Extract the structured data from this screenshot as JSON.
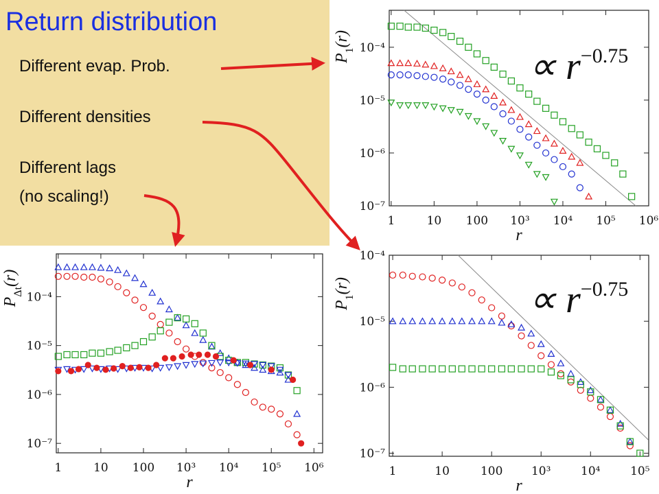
{
  "slide": {
    "title": "Return distribution",
    "notes": [
      "Different evap. Prob.",
      "Different densities",
      "Different lags",
      "(no scaling!)"
    ]
  },
  "chart_data": [
    {
      "type": "scatter",
      "log_x": true,
      "log_y": true,
      "xlabel": "r",
      "ylabel": [
        "P",
        "1",
        "(r)"
      ],
      "annotation": {
        "text": "∝ r",
        "exponent": "−0.75"
      },
      "xlim": [
        0.9,
        1000000
      ],
      "ylim": [
        1e-07,
        0.0005
      ],
      "xticks": [
        1,
        10,
        100,
        {
          "value": 1000,
          "label": "10³"
        },
        {
          "value": 10000,
          "label": "10⁴"
        },
        {
          "value": 100000,
          "label": "10⁵"
        },
        {
          "value": 1000000,
          "label": "10⁶"
        }
      ],
      "yticks": [
        {
          "value": 1e-07,
          "label": "10⁻⁷"
        },
        {
          "value": 1e-06,
          "label": "10⁻⁶"
        },
        {
          "value": 1e-05,
          "label": "10⁻⁵"
        },
        {
          "value": 0.0001,
          "label": "10⁻⁴"
        }
      ],
      "series": [
        {
          "marker": "line",
          "color": "#888888",
          "x": [
            2,
            500000
          ],
          "values": [
            0.0005,
            1e-07
          ]
        },
        {
          "marker": "square",
          "color": "#22a022",
          "x": [
            1,
            1.6,
            2.5,
            4,
            6.3,
            10,
            16,
            25,
            40,
            63,
            100,
            160,
            250,
            400,
            630,
            1000,
            1600,
            2500,
            4000,
            6300,
            10000,
            16000,
            25000,
            40000,
            63000,
            100000,
            160000,
            250000,
            400000
          ],
          "values": [
            0.00025,
            0.00025,
            0.00024,
            0.00024,
            0.00023,
            0.00021,
            0.00019,
            0.00016,
            0.00013,
            0.0001,
            7.5e-05,
            5.6e-05,
            4.2e-05,
            3.1e-05,
            2.3e-05,
            1.7e-05,
            1.3e-05,
            9.5e-06,
            7e-06,
            5.2e-06,
            3.9e-06,
            2.9e-06,
            2.2e-06,
            1.6e-06,
            1.2e-06,
            9e-07,
            6.5e-07,
            4e-07,
            1.5e-07
          ]
        },
        {
          "marker": "triangle-up",
          "color": "#e02020",
          "x": [
            1,
            1.6,
            2.5,
            4,
            6.3,
            10,
            16,
            25,
            40,
            63,
            100,
            160,
            250,
            400,
            630,
            1000,
            1600,
            2500,
            4000,
            6300,
            10000,
            16000,
            25000,
            40000
          ],
          "values": [
            5e-05,
            5e-05,
            5e-05,
            4.9e-05,
            4.7e-05,
            4.4e-05,
            4e-05,
            3.5e-05,
            3e-05,
            2.5e-05,
            2e-05,
            1.6e-05,
            1.2e-05,
            9e-06,
            6.5e-06,
            4.8e-06,
            3.5e-06,
            2.6e-06,
            1.9e-06,
            1.5e-06,
            1.1e-06,
            8.5e-07,
            6.5e-07,
            1.5e-07
          ]
        },
        {
          "marker": "circle",
          "color": "#2030d0",
          "x": [
            1,
            1.6,
            2.5,
            4,
            6.3,
            10,
            16,
            25,
            40,
            63,
            100,
            160,
            250,
            400,
            630,
            1000,
            1600,
            2500,
            4000,
            6300,
            10000,
            16000,
            25000
          ],
          "values": [
            3e-05,
            3e-05,
            3e-05,
            2.9e-05,
            2.8e-05,
            2.7e-05,
            2.5e-05,
            2.2e-05,
            1.9e-05,
            1.6e-05,
            1.3e-05,
            1e-05,
            7.5e-06,
            5.5e-06,
            4e-06,
            2.8e-06,
            2e-06,
            1.4e-06,
            1e-06,
            7.5e-07,
            5.5e-07,
            4e-07,
            2.2e-07
          ]
        },
        {
          "marker": "triangle-down",
          "color": "#22a022",
          "x": [
            1,
            1.6,
            2.5,
            4,
            6.3,
            10,
            16,
            25,
            40,
            63,
            100,
            160,
            250,
            400,
            630,
            1000,
            1600,
            2500,
            4000,
            6300
          ],
          "values": [
            9e-06,
            8e-06,
            8e-06,
            8e-06,
            8e-06,
            7.5e-06,
            7e-06,
            6.5e-06,
            6e-06,
            5e-06,
            4e-06,
            3.2e-06,
            2.4e-06,
            1.7e-06,
            1.2e-06,
            9e-07,
            6e-07,
            4e-07,
            3.5e-07,
            1.2e-07
          ]
        }
      ]
    },
    {
      "type": "scatter",
      "log_x": true,
      "log_y": true,
      "xlabel": "r",
      "ylabel": [
        "P",
        "1",
        "(r)"
      ],
      "annotation": {
        "text": "∝ r",
        "exponent": "−0.75"
      },
      "xlim": [
        0.85,
        150000
      ],
      "ylim": [
        9e-08,
        0.0001
      ],
      "xticks": [
        1,
        10,
        100,
        {
          "value": 1000,
          "label": "10³"
        },
        {
          "value": 10000,
          "label": "10⁴"
        },
        {
          "value": 100000,
          "label": "10⁵"
        }
      ],
      "yticks": [
        {
          "value": 1e-07,
          "label": "10⁻⁷"
        },
        {
          "value": 1e-06,
          "label": "10⁻⁶"
        },
        {
          "value": 1e-05,
          "label": "10⁻⁵"
        },
        {
          "value": 0.0001,
          "label": "10⁻⁴"
        }
      ],
      "series": [
        {
          "marker": "line",
          "color": "#888888",
          "x": [
            21,
            147000
          ],
          "values": [
            0.0001,
            1.6e-07
          ]
        },
        {
          "marker": "circle",
          "color": "#e02020",
          "x": [
            1,
            1.6,
            2.5,
            4,
            6.3,
            10,
            16,
            25,
            40,
            63,
            100,
            160,
            250,
            400,
            630,
            1000,
            1600,
            2500,
            4000,
            6300,
            10000,
            16000,
            25000,
            40000,
            63000
          ],
          "values": [
            5e-05,
            5e-05,
            4.8e-05,
            4.7e-05,
            4.5e-05,
            4.2e-05,
            3.8e-05,
            3.3e-05,
            2.7e-05,
            2.1e-05,
            1.6e-05,
            1.2e-05,
            8.5e-06,
            6e-06,
            4.3e-06,
            3e-06,
            2.2e-06,
            1.6e-06,
            1.2e-06,
            9e-07,
            6.8e-07,
            5e-07,
            3.6e-07,
            2.4e-07,
            1.3e-07
          ]
        },
        {
          "marker": "triangle-up",
          "color": "#2030d0",
          "x": [
            1,
            1.6,
            2.5,
            4,
            6.3,
            10,
            16,
            25,
            40,
            63,
            100,
            160,
            250,
            400,
            630,
            1000,
            1600,
            2500,
            4000,
            6300,
            10000,
            16000,
            25000,
            40000,
            63000
          ],
          "values": [
            1e-05,
            1e-05,
            1e-05,
            1e-05,
            1e-05,
            1e-05,
            1e-05,
            1e-05,
            1e-05,
            1e-05,
            1e-05,
            9.5e-06,
            9e-06,
            8e-06,
            6.5e-06,
            4.5e-06,
            3.2e-06,
            2.3e-06,
            1.6e-06,
            1.2e-06,
            9e-07,
            6.5e-07,
            4.5e-07,
            2.8e-07,
            1.5e-07
          ]
        },
        {
          "marker": "square",
          "color": "#22a022",
          "x": [
            1,
            1.6,
            2.5,
            4,
            6.3,
            10,
            16,
            25,
            40,
            63,
            100,
            160,
            250,
            400,
            630,
            1000,
            1600,
            2500,
            4000,
            6300,
            10000,
            16000,
            25000,
            40000,
            63000,
            100000
          ],
          "values": [
            2e-06,
            1.9e-06,
            1.9e-06,
            1.9e-06,
            1.9e-06,
            1.9e-06,
            1.9e-06,
            1.9e-06,
            1.9e-06,
            1.9e-06,
            1.9e-06,
            1.9e-06,
            1.9e-06,
            1.9e-06,
            1.9e-06,
            1.9e-06,
            1.7e-06,
            1.5e-06,
            1.3e-06,
            1.1e-06,
            8.5e-07,
            6.5e-07,
            4.5e-07,
            2.6e-07,
            1.5e-07,
            1e-07
          ]
        }
      ]
    },
    {
      "type": "scatter",
      "log_x": true,
      "log_y": true,
      "xlabel": "r",
      "ylabel": [
        "P",
        "Δt",
        "(r)"
      ],
      "xlim": [
        0.9,
        1600000
      ],
      "ylim": [
        6.4e-08,
        0.00075
      ],
      "xticks": [
        1,
        10,
        100,
        {
          "value": 1000,
          "label": "10³"
        },
        {
          "value": 10000,
          "label": "10⁴"
        },
        {
          "value": 100000,
          "label": "10⁵"
        },
        {
          "value": 1000000,
          "label": "10⁶"
        }
      ],
      "yticks": [
        {
          "value": 1e-07,
          "label": "10⁻⁷"
        },
        {
          "value": 1e-06,
          "label": "10⁻⁶"
        },
        {
          "value": 1e-05,
          "label": "10⁻⁵"
        },
        {
          "value": 0.0001,
          "label": "10⁻⁴"
        }
      ],
      "series": [
        {
          "marker": "triangle-up",
          "color": "#2030d0",
          "x": [
            1,
            1.6,
            2.5,
            4,
            6.3,
            10,
            16,
            25,
            40,
            63,
            100,
            160,
            250,
            400,
            630,
            1000,
            1600,
            2500,
            4000,
            6300,
            10000,
            16000,
            25000,
            40000,
            63000,
            100000,
            160000,
            250000,
            400000
          ],
          "values": [
            0.0004,
            0.0004,
            0.0004,
            0.0004,
            0.0004,
            0.00039,
            0.00038,
            0.00035,
            0.0003,
            0.00024,
            0.00018,
            0.00012,
            8e-05,
            5.5e-05,
            3.7e-05,
            2.6e-05,
            1.8e-05,
            1.3e-05,
            9.5e-06,
            7e-06,
            5.5e-06,
            4.5e-06,
            4e-06,
            3.5e-06,
            3.2e-06,
            3e-06,
            2.8e-06,
            2e-06,
            4e-07
          ]
        },
        {
          "marker": "circle",
          "color": "#e02020",
          "x": [
            1,
            1.6,
            2.5,
            4,
            6.3,
            10,
            16,
            25,
            40,
            63,
            100,
            160,
            250,
            400,
            630,
            1000,
            1600,
            2500,
            4000,
            6300,
            10000,
            16000,
            25000,
            40000,
            63000,
            100000,
            160000,
            250000,
            400000
          ],
          "values": [
            0.00026,
            0.00026,
            0.00026,
            0.00025,
            0.00025,
            0.00023,
            0.0002,
            0.00016,
            0.00012,
            8.5e-05,
            6e-05,
            4e-05,
            2.7e-05,
            1.8e-05,
            1.2e-05,
            8.5e-06,
            6e-06,
            4.5e-06,
            3.5e-06,
            2.8e-06,
            2.2e-06,
            1.6e-06,
            1.1e-06,
            7e-07,
            5.5e-07,
            5e-07,
            4e-07,
            2.5e-07,
            1.5e-07
          ]
        },
        {
          "marker": "square",
          "color": "#22a022",
          "x": [
            1,
            1.6,
            2.5,
            4,
            6.3,
            10,
            16,
            25,
            40,
            63,
            100,
            160,
            250,
            400,
            630,
            1000,
            1600,
            2500,
            4000,
            6300,
            10000,
            16000,
            25000,
            40000,
            63000,
            100000,
            160000,
            250000,
            400000
          ],
          "values": [
            6e-06,
            6.5e-06,
            6.5e-06,
            6.5e-06,
            7e-06,
            7e-06,
            7.5e-06,
            8e-06,
            9e-06,
            1e-05,
            1.2e-05,
            1.5e-05,
            2e-05,
            3e-05,
            3.7e-05,
            3.5e-05,
            2.8e-05,
            1.8e-05,
            1e-05,
            6e-06,
            5e-06,
            4.5e-06,
            4.5e-06,
            4.2e-06,
            4e-06,
            3.8e-06,
            3.5e-06,
            2.5e-06,
            1.2e-06
          ]
        },
        {
          "marker": "triangle-down",
          "color": "#2030d0",
          "x": [
            1,
            1.6,
            2.5,
            4,
            6.3,
            10,
            16,
            25,
            40,
            63,
            100,
            160,
            250,
            400,
            630,
            1000,
            1600,
            2500,
            4000,
            6300,
            10000,
            16000,
            25000,
            40000,
            63000,
            100000,
            160000,
            250000
          ],
          "values": [
            3.2e-06,
            3.3e-06,
            3.2e-06,
            3.3e-06,
            3.4e-06,
            3.3e-06,
            3.4e-06,
            3.3e-06,
            3.4e-06,
            3.5e-06,
            3.5e-06,
            3.4e-06,
            3.5e-06,
            3.6e-06,
            3.8e-06,
            4e-06,
            4.2e-06,
            4.3e-06,
            4.4e-06,
            4.5e-06,
            4.5e-06,
            4.4e-06,
            4.3e-06,
            4.2e-06,
            4e-06,
            3.8e-06,
            3.2e-06,
            2.5e-06
          ]
        },
        {
          "marker": "circle-filled",
          "color": "#e02020",
          "x": [
            1,
            2,
            3,
            5,
            8,
            13,
            20,
            32,
            50,
            80,
            130,
            200,
            320,
            500,
            800,
            1300,
            2000,
            3200,
            5000,
            13000,
            32000,
            100000,
            320000,
            500000
          ],
          "values": [
            3e-06,
            3e-06,
            3.3e-06,
            4e-06,
            3.5e-06,
            3.2e-06,
            3.4e-06,
            3.8e-06,
            3.5e-06,
            3.6e-06,
            3.5e-06,
            4e-06,
            5.5e-06,
            5.5e-06,
            6e-06,
            6.5e-06,
            6.5e-06,
            6.5e-06,
            6e-06,
            5e-06,
            4e-06,
            3.2e-06,
            2e-06,
            1e-07
          ]
        }
      ]
    }
  ]
}
